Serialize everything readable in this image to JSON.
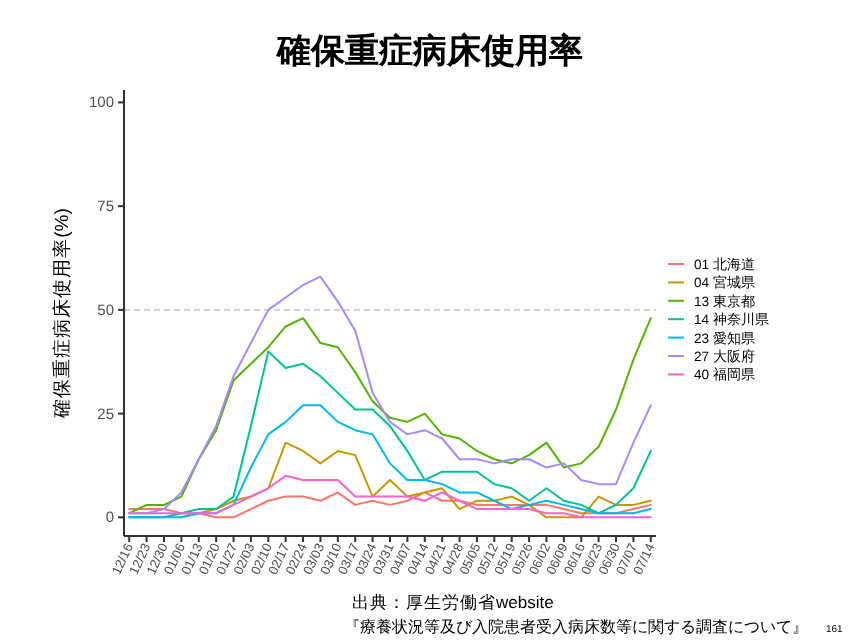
{
  "chart_data": {
    "type": "line",
    "title": "確保重症病床使用率",
    "ylabel": "確保重症病床使用率(%)",
    "categories": [
      "12/16",
      "12/23",
      "12/30",
      "01/06",
      "01/13",
      "01/20",
      "01/27",
      "02/03",
      "02/10",
      "02/17",
      "02/24",
      "03/03",
      "03/10",
      "03/17",
      "03/24",
      "03/31",
      "04/07",
      "04/14",
      "04/21",
      "04/28",
      "05/05",
      "05/12",
      "05/19",
      "05/26",
      "06/02",
      "06/09",
      "06/16",
      "06/23",
      "06/30",
      "07/07",
      "07/14"
    ],
    "series": [
      {
        "name": "01 北海道",
        "color": "#f8766d",
        "values": [
          2,
          2,
          2,
          1,
          1,
          0,
          0,
          2,
          4,
          5,
          5,
          4,
          6,
          3,
          4,
          3,
          4,
          6,
          4,
          4,
          3,
          3,
          3,
          3,
          3,
          2,
          1,
          1,
          1,
          2,
          3
        ]
      },
      {
        "name": "04 宮城県",
        "color": "#c49a00",
        "values": [
          null,
          null,
          null,
          0,
          1,
          2,
          4,
          5,
          7,
          18,
          16,
          13,
          16,
          15,
          5,
          9,
          5,
          6,
          7,
          2,
          4,
          4,
          5,
          3,
          0,
          0,
          0,
          5,
          3,
          3,
          4
        ]
      },
      {
        "name": "13 東京都",
        "color": "#53b400",
        "values": [
          1,
          3,
          3,
          5,
          14,
          21,
          33,
          37,
          41,
          46,
          48,
          42,
          41,
          35,
          28,
          24,
          23,
          25,
          20,
          19,
          16,
          14,
          13,
          15,
          18,
          12,
          13,
          17,
          26,
          38,
          48
        ]
      },
      {
        "name": "14 神奈川県",
        "color": "#00c094",
        "values": [
          0,
          0,
          0,
          1,
          2,
          2,
          5,
          22,
          40,
          36,
          37,
          34,
          30,
          26,
          26,
          22,
          16,
          9,
          11,
          11,
          11,
          8,
          7,
          4,
          7,
          4,
          3,
          1,
          3,
          7,
          16
        ]
      },
      {
        "name": "23 愛知県",
        "color": "#00b6eb",
        "values": [
          0,
          0,
          0,
          0,
          1,
          1,
          3,
          12,
          20,
          23,
          27,
          27,
          23,
          21,
          20,
          13,
          9,
          9,
          8,
          6,
          6,
          4,
          2,
          3,
          4,
          3,
          2,
          1,
          1,
          1,
          2
        ]
      },
      {
        "name": "27 大阪府",
        "color": "#a58aff",
        "values": [
          1,
          1,
          2,
          6,
          14,
          22,
          34,
          42,
          50,
          53,
          56,
          58,
          52,
          45,
          30,
          23,
          20,
          21,
          19,
          14,
          14,
          13,
          14,
          14,
          12,
          13,
          9,
          8,
          8,
          18,
          27
        ]
      },
      {
        "name": "40 福岡県",
        "color": "#fb61d7",
        "values": [
          1,
          1,
          1,
          1,
          1,
          1,
          3,
          5,
          7,
          10,
          9,
          9,
          9,
          5,
          5,
          5,
          5,
          4,
          6,
          4,
          2,
          2,
          2,
          2,
          1,
          1,
          0,
          0,
          0,
          0,
          0
        ]
      }
    ],
    "ylim": [
      -4.5,
      103
    ],
    "yticks": [
      0,
      25,
      50,
      75,
      100
    ],
    "ref_lines": [
      {
        "axis": "y",
        "value": 50,
        "color": "#cccccc",
        "line_style": "dashed"
      }
    ],
    "legend": "right",
    "grid": false,
    "annotations": [
      "出典：厚生労働省website",
      "『療養状況等及び入院患者受入病床数等に関する調査について』",
      "161"
    ]
  }
}
